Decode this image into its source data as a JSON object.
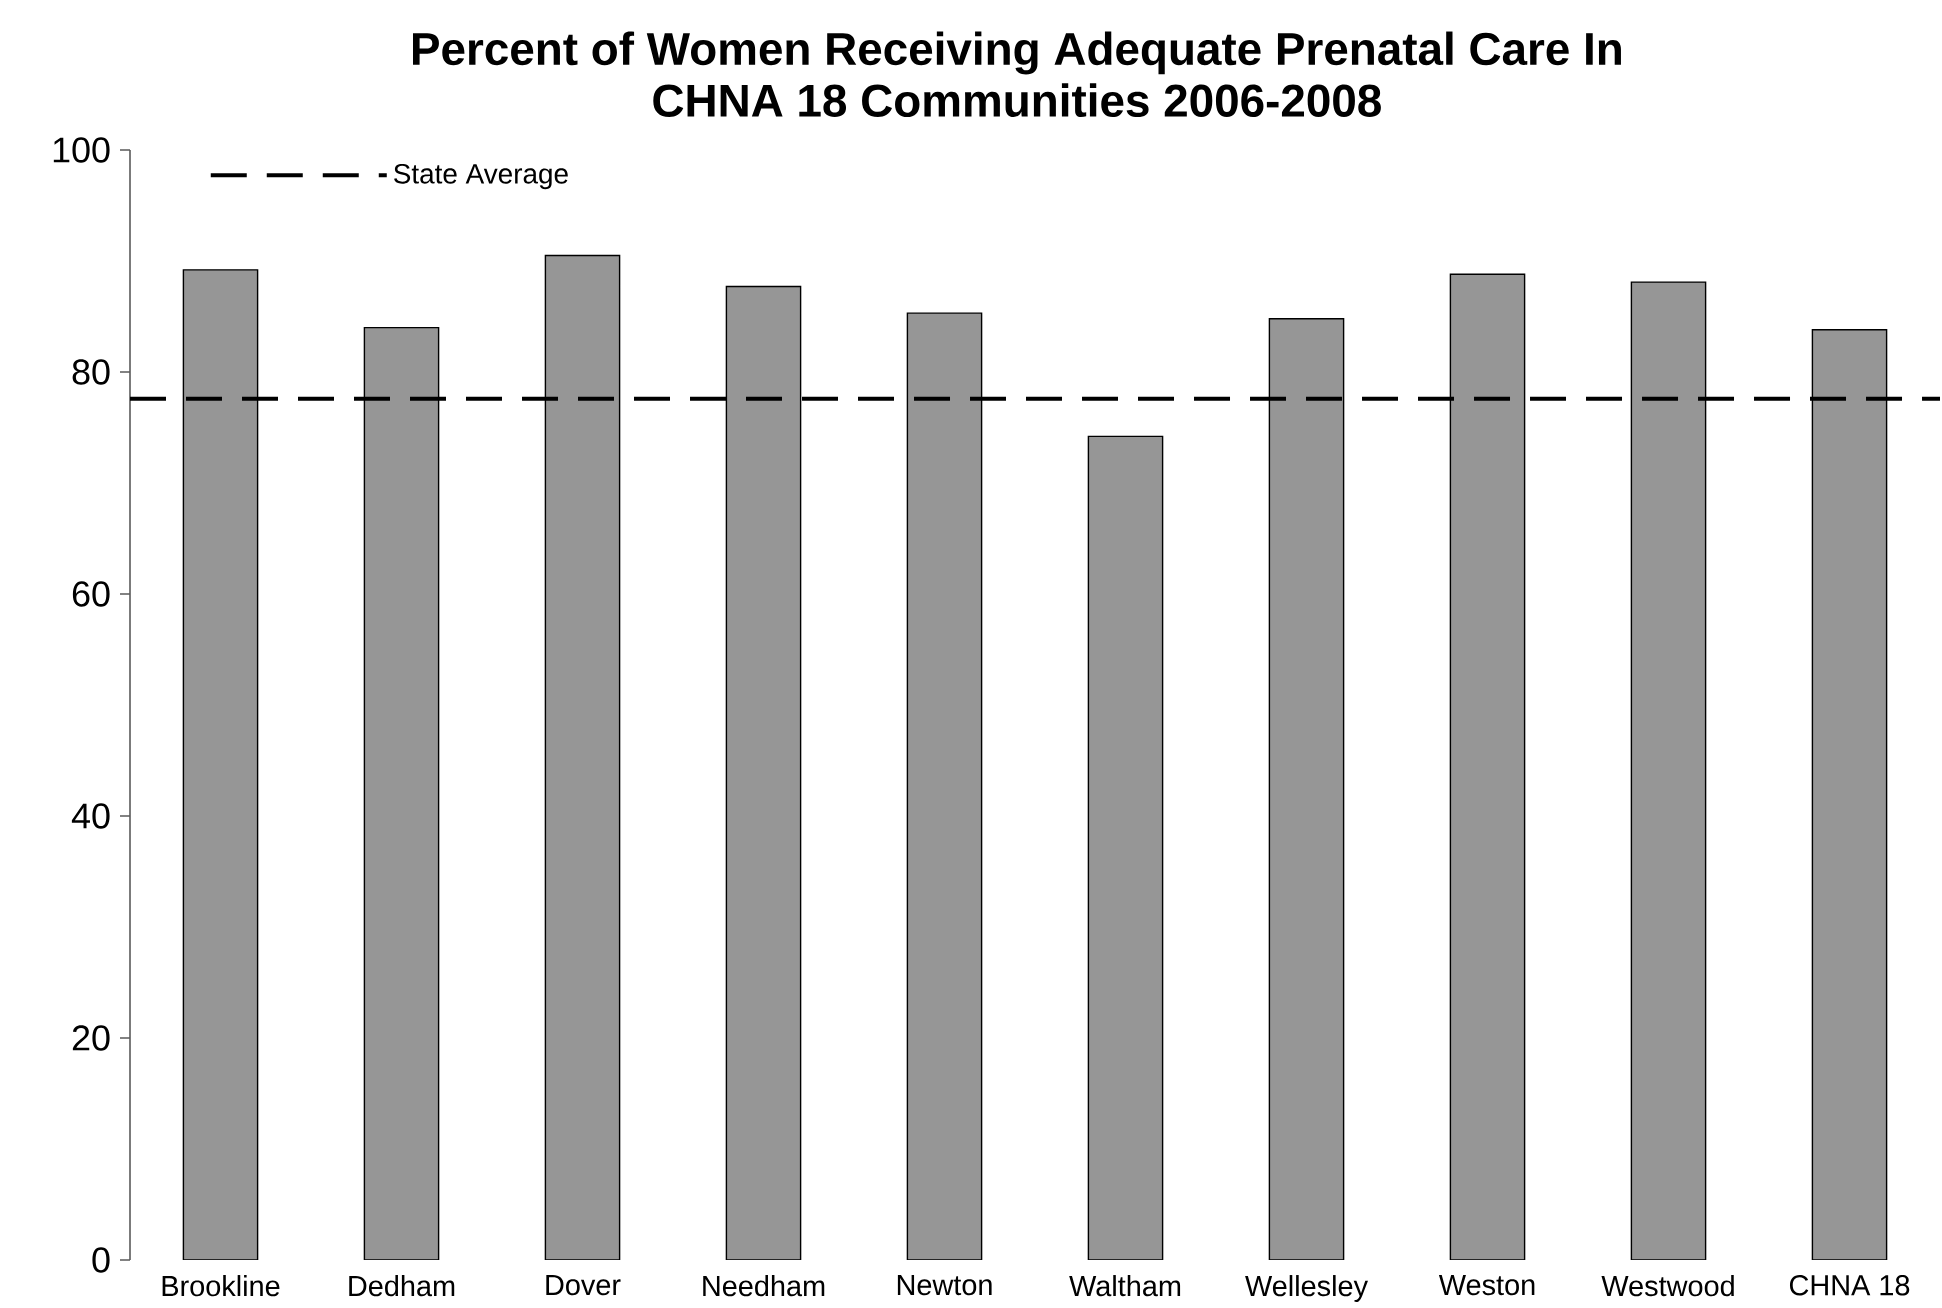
{
  "chart_data": {
    "type": "bar",
    "title": "Percent of Women Receiving Adequate Prenatal Care In CHNA 18 Communities 2006-2008",
    "categories": [
      "Brookline",
      "Dedham",
      "Dover",
      "Needham",
      "Newton",
      "Waltham",
      "Wellesley",
      "Weston",
      "Westwood",
      "CHNA 18"
    ],
    "values": [
      89.2,
      84.0,
      90.5,
      87.7,
      85.3,
      74.2,
      84.8,
      88.8,
      88.1,
      83.8
    ],
    "color": "#969696",
    "ylim": [
      0,
      100
    ],
    "yticks": [
      0,
      20,
      40,
      60,
      80,
      100
    ],
    "ref_lines": [
      {
        "axis": "y",
        "value": 77.6,
        "label": "State Average",
        "color": "#000000",
        "line_style": "dashed"
      }
    ],
    "legend": "top left"
  }
}
